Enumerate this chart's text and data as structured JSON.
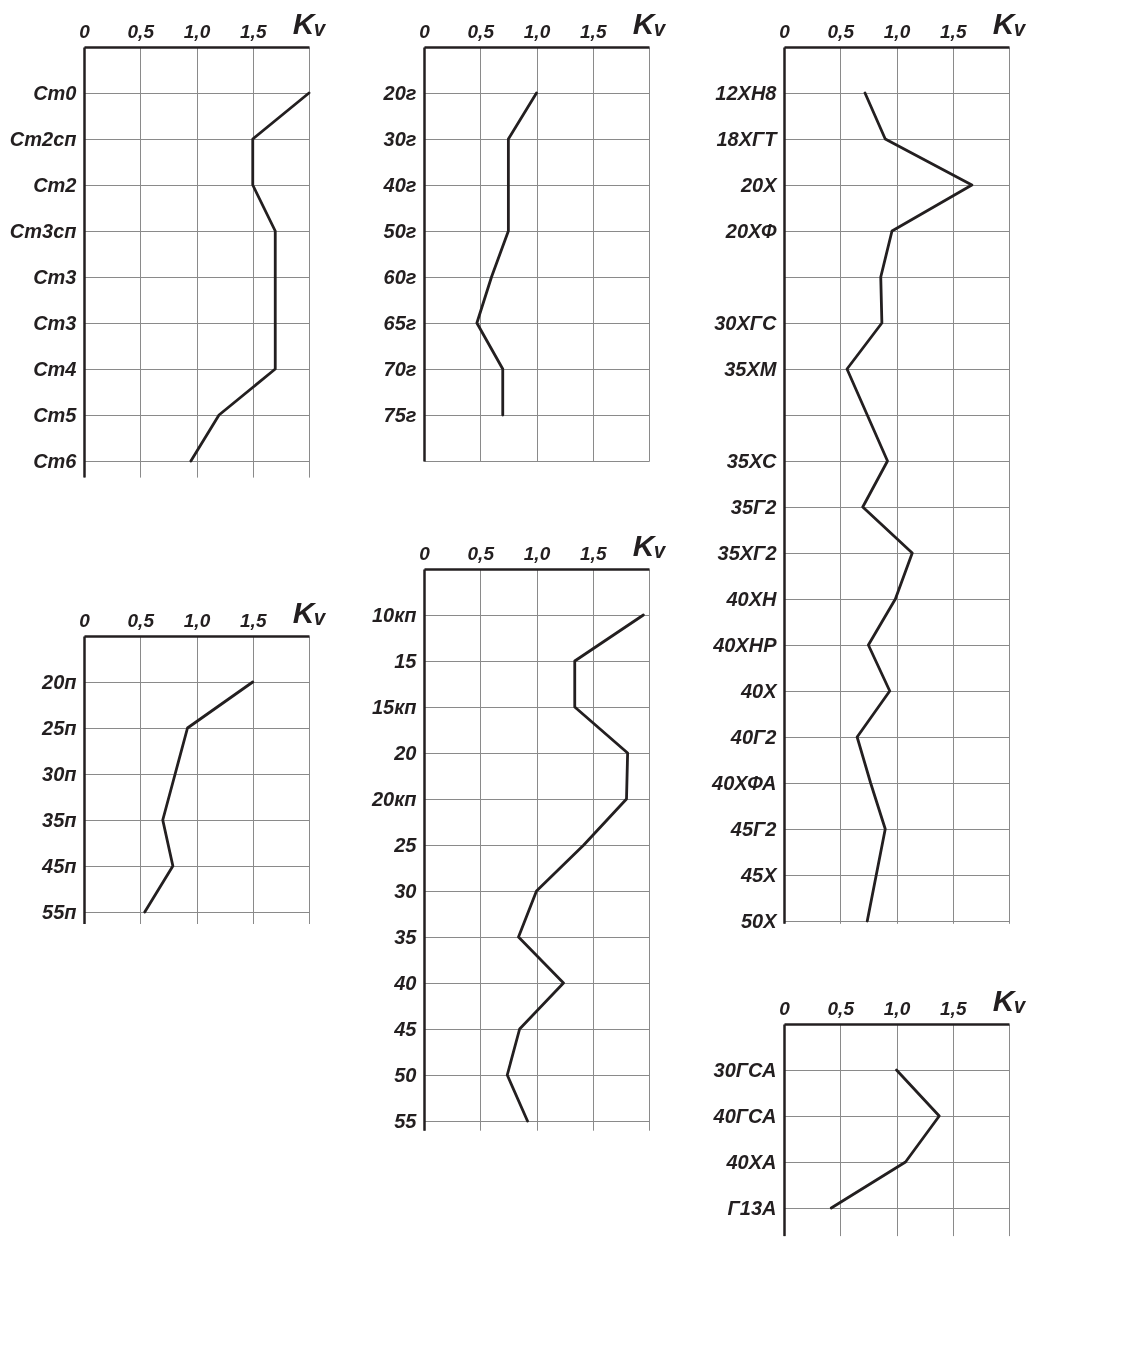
{
  "chart_data": [
    {
      "type": "line",
      "orientation": "horizontal",
      "xlabel": "Kᵥ",
      "xlim": [
        0,
        2
      ],
      "xticks": [
        {
          "value": 0,
          "label": "0"
        },
        {
          "value": 0.5,
          "label": "0,5"
        },
        {
          "value": 1,
          "label": "1,0"
        },
        {
          "value": 1.5,
          "label": "1,5"
        },
        {
          "value": 2,
          "label": null
        }
      ],
      "grid": true,
      "color": "#231f20",
      "categories": [
        "Ст0",
        "Ст2сп",
        "Ст2",
        "Ст3сп",
        "Ст3",
        "Ст3",
        "Ст4",
        "Ст5",
        "Ст6"
      ],
      "values": [
        2.0,
        1.5,
        1.5,
        1.7,
        1.7,
        1.7,
        1.7,
        1.2,
        0.95
      ]
    },
    {
      "type": "line",
      "orientation": "horizontal",
      "xlabel": "Kᵥ",
      "xlim": [
        0,
        2
      ],
      "xticks": [
        {
          "value": 0,
          "label": "0"
        },
        {
          "value": 0.5,
          "label": "0,5"
        },
        {
          "value": 1,
          "label": "1,0"
        },
        {
          "value": 1.5,
          "label": "1,5"
        },
        {
          "value": 2,
          "label": null
        }
      ],
      "grid": true,
      "color": "#231f20",
      "categories": [
        "20г",
        "30г",
        "40г",
        "50г",
        "60г",
        "65г",
        "70г",
        "75г",
        null
      ],
      "values": [
        1.0,
        0.75,
        0.75,
        0.75,
        0.6,
        0.47,
        0.7,
        0.7,
        null
      ]
    },
    {
      "type": "line",
      "orientation": "horizontal",
      "xlabel": "Kᵥ",
      "xlim": [
        0,
        2
      ],
      "xticks": [
        {
          "value": 0,
          "label": "0"
        },
        {
          "value": 0.5,
          "label": "0,5"
        },
        {
          "value": 1,
          "label": "1,0"
        },
        {
          "value": 1.5,
          "label": "1,5"
        },
        {
          "value": 2,
          "label": null
        }
      ],
      "grid": true,
      "color": "#231f20",
      "categories": [
        "12ХН8",
        "18ХГТ",
        "20Х",
        "20ХФ",
        null,
        "30ХГС",
        "35ХМ",
        null,
        "35ХС",
        "35Г2",
        "35ХГ2",
        "40ХН",
        "40ХНР",
        "40Х",
        "40Г2",
        "40ХФА",
        "45Г2",
        "45Х",
        "50Х"
      ],
      "values": [
        0.72,
        0.9,
        1.67,
        0.96,
        0.86,
        0.87,
        0.56,
        0.74,
        0.92,
        0.7,
        1.14,
        0.99,
        0.75,
        0.94,
        0.65,
        0.77,
        0.9,
        0.82,
        0.74
      ]
    },
    {
      "type": "line",
      "orientation": "horizontal",
      "xlabel": "Kᵥ",
      "xlim": [
        0,
        2
      ],
      "xticks": [
        {
          "value": 0,
          "label": "0"
        },
        {
          "value": 0.5,
          "label": "0,5"
        },
        {
          "value": 1,
          "label": "1,0"
        },
        {
          "value": 1.5,
          "label": "1,5"
        },
        {
          "value": 2,
          "label": null
        }
      ],
      "grid": true,
      "color": "#231f20",
      "categories": [
        "20п",
        "25п",
        "30п",
        "35п",
        "45п",
        "55п"
      ],
      "values": [
        1.5,
        0.92,
        0.81,
        0.7,
        0.79,
        0.54
      ]
    },
    {
      "type": "line",
      "orientation": "horizontal",
      "xlabel": "Kᵥ",
      "xlim": [
        0,
        2
      ],
      "xticks": [
        {
          "value": 0,
          "label": "0"
        },
        {
          "value": 0.5,
          "label": "0,5"
        },
        {
          "value": 1,
          "label": "1,0"
        },
        {
          "value": 1.5,
          "label": "1,5"
        },
        {
          "value": 2,
          "label": null
        }
      ],
      "grid": true,
      "color": "#231f20",
      "categories": [
        "10кп",
        "15",
        "15кп",
        "20",
        "20кп",
        "25",
        "30",
        "35",
        "40",
        "45",
        "50",
        "55"
      ],
      "values": [
        1.95,
        1.34,
        1.34,
        1.81,
        1.8,
        1.42,
        1.0,
        0.84,
        1.24,
        0.85,
        0.74,
        0.92
      ]
    },
    {
      "type": "line",
      "orientation": "horizontal",
      "xlabel": "Kᵥ",
      "xlim": [
        0,
        2
      ],
      "xticks": [
        {
          "value": 0,
          "label": "0"
        },
        {
          "value": 0.5,
          "label": "0,5"
        },
        {
          "value": 1,
          "label": "1,0"
        },
        {
          "value": 1.5,
          "label": "1,5"
        },
        {
          "value": 2,
          "label": null
        }
      ],
      "grid": true,
      "color": "#231f20",
      "categories": [
        "30ГСА",
        "40ГСА",
        "40ХА",
        "Г13А"
      ],
      "values": [
        1.0,
        1.38,
        1.08,
        0.42
      ]
    }
  ]
}
